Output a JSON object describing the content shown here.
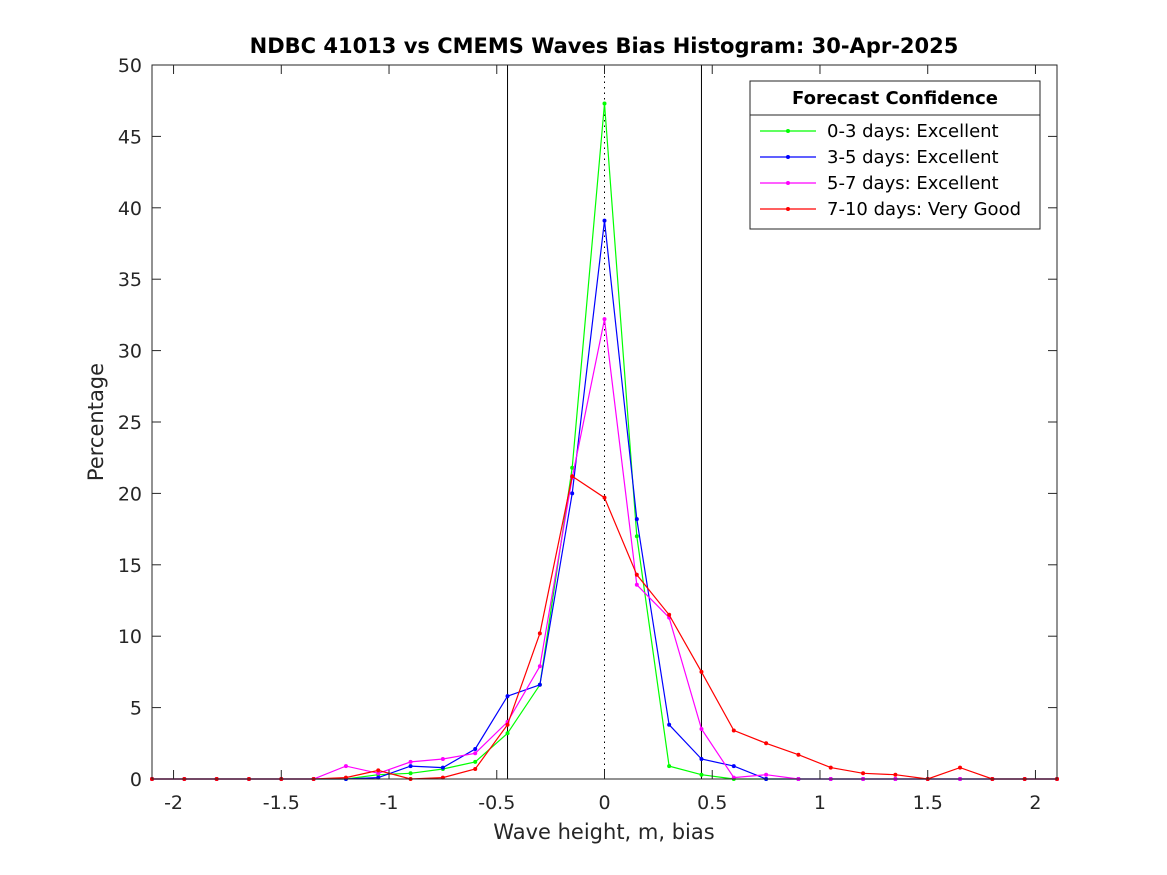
{
  "chart_data": {
    "type": "line",
    "title": "NDBC 41013 vs CMEMS Waves Bias Histogram: 30-Apr-2025",
    "xlabel": "Wave height, m, bias",
    "ylabel": "Percentage",
    "xlim": [
      -2.1,
      2.1
    ],
    "ylim": [
      0,
      50
    ],
    "xticks": [
      -2,
      -1.5,
      -1,
      -0.5,
      0,
      0.5,
      1,
      1.5,
      2
    ],
    "xtick_labels": [
      "-2",
      "-1.5",
      "-1",
      "-0.5",
      "0",
      "0.5",
      "1",
      "1.5",
      "2"
    ],
    "yticks": [
      0,
      5,
      10,
      15,
      20,
      25,
      30,
      35,
      40,
      45,
      50
    ],
    "ytick_labels": [
      "0",
      "5",
      "10",
      "15",
      "20",
      "25",
      "30",
      "35",
      "40",
      "45",
      "50"
    ],
    "vertical_lines": [
      {
        "x": -0.45,
        "style": "solid"
      },
      {
        "x": 0.45,
        "style": "solid"
      },
      {
        "x": 0,
        "style": "dotted"
      }
    ],
    "legend": {
      "title": "Forecast Confidence",
      "position": "top-right"
    },
    "x": [
      -2.1,
      -1.95,
      -1.8,
      -1.65,
      -1.5,
      -1.35,
      -1.2,
      -1.05,
      -0.9,
      -0.75,
      -0.6,
      -0.45,
      -0.3,
      -0.15,
      0,
      0.15,
      0.3,
      0.45,
      0.6,
      0.75,
      0.9,
      1.05,
      1.2,
      1.35,
      1.5,
      1.65,
      1.8,
      1.95,
      2.1
    ],
    "series": [
      {
        "name": "0-3 days: Excellent",
        "color": "#00ff00",
        "values": [
          0,
          0,
          0,
          0,
          0,
          0,
          0,
          0.3,
          0.4,
          0.7,
          1.2,
          3.2,
          6.6,
          21.8,
          47.3,
          17.0,
          0.9,
          0.3,
          0,
          0,
          0,
          0,
          0,
          0,
          0,
          0,
          0,
          0,
          0
        ]
      },
      {
        "name": "3-5 days: Excellent",
        "color": "#0000ff",
        "values": [
          0,
          0,
          0,
          0,
          0,
          0,
          0,
          0.1,
          0.9,
          0.8,
          2.1,
          5.8,
          6.6,
          20.0,
          39.1,
          18.2,
          3.8,
          1.4,
          0.9,
          0,
          0,
          0,
          0,
          0,
          0,
          0,
          0,
          0,
          0
        ]
      },
      {
        "name": "5-7 days: Excellent",
        "color": "#ff00ff",
        "values": [
          0,
          0,
          0,
          0,
          0,
          0,
          0.9,
          0.4,
          1.2,
          1.4,
          1.8,
          4.0,
          7.9,
          21.1,
          32.2,
          13.6,
          11.3,
          3.5,
          0.1,
          0.3,
          0,
          0,
          0,
          0,
          0,
          0,
          0,
          0,
          0
        ]
      },
      {
        "name": "7-10 days: Very Good",
        "color": "#ff0000",
        "values": [
          0,
          0,
          0,
          0,
          0,
          0,
          0.1,
          0.6,
          0,
          0.1,
          0.7,
          3.8,
          10.2,
          21.2,
          19.7,
          14.3,
          11.5,
          7.5,
          3.4,
          2.5,
          1.7,
          0.8,
          0.4,
          0.3,
          0,
          0.8,
          0,
          0,
          0
        ]
      }
    ]
  }
}
